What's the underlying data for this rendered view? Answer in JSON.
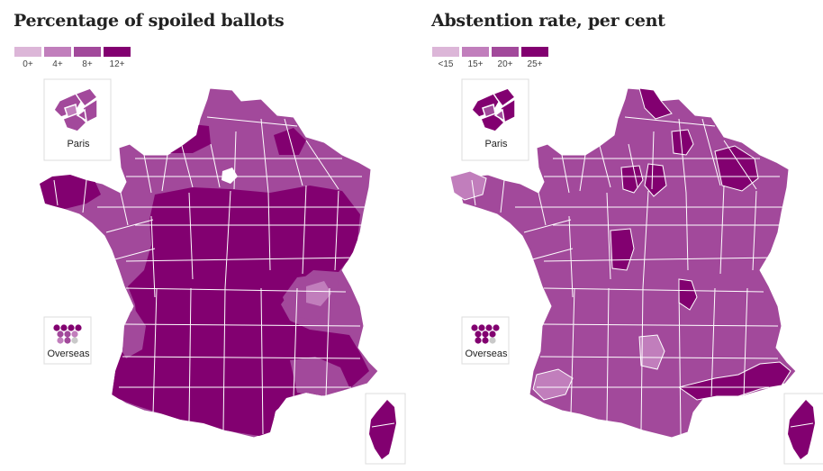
{
  "maps": [
    {
      "title": "Percentage of spoiled ballots",
      "legend": [
        {
          "label": "0+",
          "color": "#dcb6d8"
        },
        {
          "label": "4+",
          "color": "#c17ebc"
        },
        {
          "label": "8+",
          "color": "#a2499b"
        },
        {
          "label": "12+",
          "color": "#820070"
        }
      ],
      "paris_label": "Paris",
      "overseas_label": "Overseas"
    },
    {
      "title": "Abstention rate, per cent",
      "legend": [
        {
          "label": "<15",
          "color": "#dcb6d8"
        },
        {
          "label": "15+",
          "color": "#c17ebc"
        },
        {
          "label": "20+",
          "color": "#a2499b"
        },
        {
          "label": "25+",
          "color": "#820070"
        }
      ],
      "paris_label": "Paris",
      "overseas_label": "Overseas"
    }
  ]
}
